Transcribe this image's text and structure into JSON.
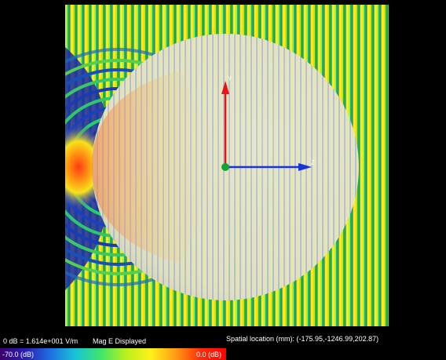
{
  "viewer": {
    "reference_text": "0 dB = 1.614e+001 V/m",
    "quantity_text": "Mag E Displayed",
    "spatial_location_text": "Spatial location (mm): (-175.95,-1246.99,202.87)"
  },
  "axes": {
    "y_label": "Y",
    "z_label": "Z",
    "y_color": "#e8131b",
    "z_color": "#1733d9",
    "origin_color": "#13a330"
  },
  "colorbar": {
    "min_label": "-70.0 (dB)",
    "max_label": "0.0 (dB)",
    "min_db": -70.0,
    "max_db": 0.0,
    "colors": [
      "#3d006e",
      "#2a1eb4",
      "#1f6fe0",
      "#19c3d8",
      "#3ee46c",
      "#b9f01e",
      "#fff11a",
      "#ff9a12",
      "#ff2a0a",
      "#ff0000"
    ]
  }
}
